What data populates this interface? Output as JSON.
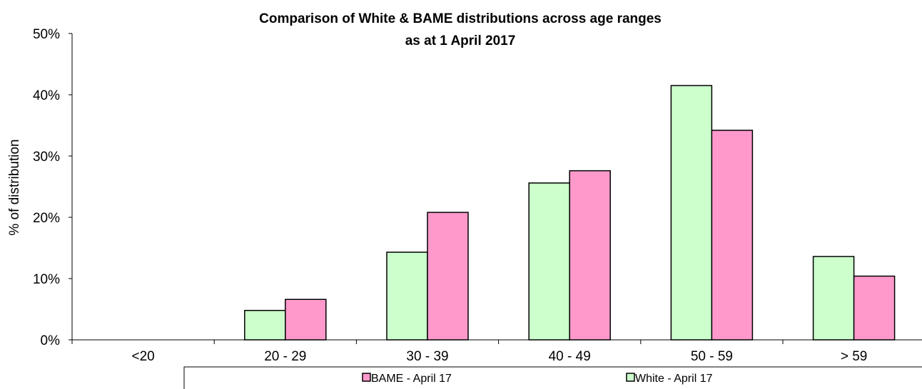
{
  "chart_data": {
    "type": "bar",
    "title_line1": "Comparison of White & BAME distributions across age ranges",
    "title_line2": "as at 1 April 2017",
    "ylabel": "% of distribution",
    "xlabel": "",
    "ylim": [
      0,
      50
    ],
    "yticks": [
      "0%",
      "10%",
      "20%",
      "30%",
      "40%",
      "50%"
    ],
    "categories": [
      "<20",
      "20 - 29",
      "30 - 39",
      "40 - 49",
      "50 - 59",
      "> 59"
    ],
    "series": [
      {
        "name": "White - April 17",
        "color": "#ccffcc",
        "values": [
          0,
          4.8,
          14.3,
          25.6,
          41.5,
          13.6
        ]
      },
      {
        "name": "BAME - April 17",
        "color": "#ff99cc",
        "values": [
          0,
          6.6,
          20.8,
          27.6,
          34.2,
          10.4
        ]
      }
    ],
    "legend": {
      "placement": "bottom",
      "items": [
        {
          "label": "BAME - April 17",
          "color": "#ff99cc"
        },
        {
          "label": "White - April 17",
          "color": "#ccffcc"
        }
      ]
    },
    "grid": false
  }
}
